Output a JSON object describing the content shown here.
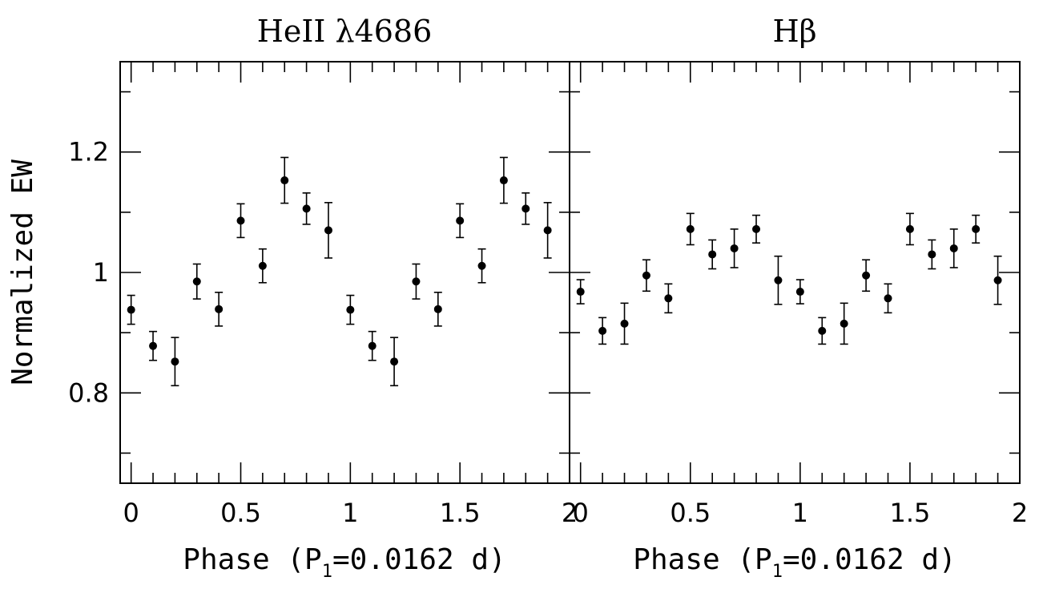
{
  "chart_data": [
    {
      "type": "scatter",
      "title": "HeII λ4686",
      "xlabel": "Phase (P",
      "xlabel_sub": "1",
      "xlabel_tail": "=0.0162 d)",
      "ylabel": "Normalized EW",
      "xlim": [
        -0.05,
        2.0
      ],
      "ylim": [
        0.65,
        1.35
      ],
      "x_ticks": [
        0,
        0.5,
        1,
        1.5,
        2
      ],
      "x_tick_labels": [
        "0",
        "0.5",
        "1",
        "1.5",
        "2"
      ],
      "y_ticks": [
        0.8,
        1.0,
        1.2
      ],
      "y_tick_labels": [
        "0.8",
        "1",
        "1.2"
      ],
      "error_bars": true,
      "grid": false,
      "points": [
        {
          "x": 0.0,
          "y": 0.938,
          "err": 0.024
        },
        {
          "x": 0.1,
          "y": 0.878,
          "err": 0.024
        },
        {
          "x": 0.2,
          "y": 0.852,
          "err": 0.04
        },
        {
          "x": 0.3,
          "y": 0.985,
          "err": 0.029
        },
        {
          "x": 0.4,
          "y": 0.939,
          "err": 0.028
        },
        {
          "x": 0.5,
          "y": 1.086,
          "err": 0.028
        },
        {
          "x": 0.6,
          "y": 1.011,
          "err": 0.028
        },
        {
          "x": 0.7,
          "y": 1.153,
          "err": 0.038
        },
        {
          "x": 0.8,
          "y": 1.106,
          "err": 0.026
        },
        {
          "x": 0.9,
          "y": 1.07,
          "err": 0.046
        },
        {
          "x": 1.0,
          "y": 0.938,
          "err": 0.024
        },
        {
          "x": 1.1,
          "y": 0.878,
          "err": 0.024
        },
        {
          "x": 1.2,
          "y": 0.852,
          "err": 0.04
        },
        {
          "x": 1.3,
          "y": 0.985,
          "err": 0.029
        },
        {
          "x": 1.4,
          "y": 0.939,
          "err": 0.028
        },
        {
          "x": 1.5,
          "y": 1.086,
          "err": 0.028
        },
        {
          "x": 1.6,
          "y": 1.011,
          "err": 0.028
        },
        {
          "x": 1.7,
          "y": 1.153,
          "err": 0.038
        },
        {
          "x": 1.8,
          "y": 1.106,
          "err": 0.026
        },
        {
          "x": 1.9,
          "y": 1.07,
          "err": 0.046
        }
      ]
    },
    {
      "type": "scatter",
      "title": "Hβ",
      "xlabel": "Phase (P",
      "xlabel_sub": "1",
      "xlabel_tail": "=0.0162 d)",
      "ylabel": "",
      "xlim": [
        -0.05,
        2.0
      ],
      "ylim": [
        0.65,
        1.35
      ],
      "x_ticks": [
        0,
        0.5,
        1,
        1.5,
        2
      ],
      "x_tick_labels": [
        "0",
        "0.5",
        "1",
        "1.5",
        "2"
      ],
      "y_ticks": [
        0.8,
        1.0,
        1.2
      ],
      "y_tick_labels": [],
      "error_bars": true,
      "grid": false,
      "points": [
        {
          "x": 0.0,
          "y": 0.968,
          "err": 0.02
        },
        {
          "x": 0.1,
          "y": 0.903,
          "err": 0.022
        },
        {
          "x": 0.2,
          "y": 0.915,
          "err": 0.034
        },
        {
          "x": 0.3,
          "y": 0.995,
          "err": 0.026
        },
        {
          "x": 0.4,
          "y": 0.957,
          "err": 0.024
        },
        {
          "x": 0.5,
          "y": 1.072,
          "err": 0.026
        },
        {
          "x": 0.6,
          "y": 1.03,
          "err": 0.024
        },
        {
          "x": 0.7,
          "y": 1.04,
          "err": 0.032
        },
        {
          "x": 0.8,
          "y": 1.072,
          "err": 0.023
        },
        {
          "x": 0.9,
          "y": 0.987,
          "err": 0.04
        },
        {
          "x": 1.0,
          "y": 0.968,
          "err": 0.02
        },
        {
          "x": 1.1,
          "y": 0.903,
          "err": 0.022
        },
        {
          "x": 1.2,
          "y": 0.915,
          "err": 0.034
        },
        {
          "x": 1.3,
          "y": 0.995,
          "err": 0.026
        },
        {
          "x": 1.4,
          "y": 0.957,
          "err": 0.024
        },
        {
          "x": 1.5,
          "y": 1.072,
          "err": 0.026
        },
        {
          "x": 1.6,
          "y": 1.03,
          "err": 0.024
        },
        {
          "x": 1.7,
          "y": 1.04,
          "err": 0.032
        },
        {
          "x": 1.8,
          "y": 1.072,
          "err": 0.023
        },
        {
          "x": 1.9,
          "y": 0.987,
          "err": 0.04
        }
      ]
    }
  ]
}
